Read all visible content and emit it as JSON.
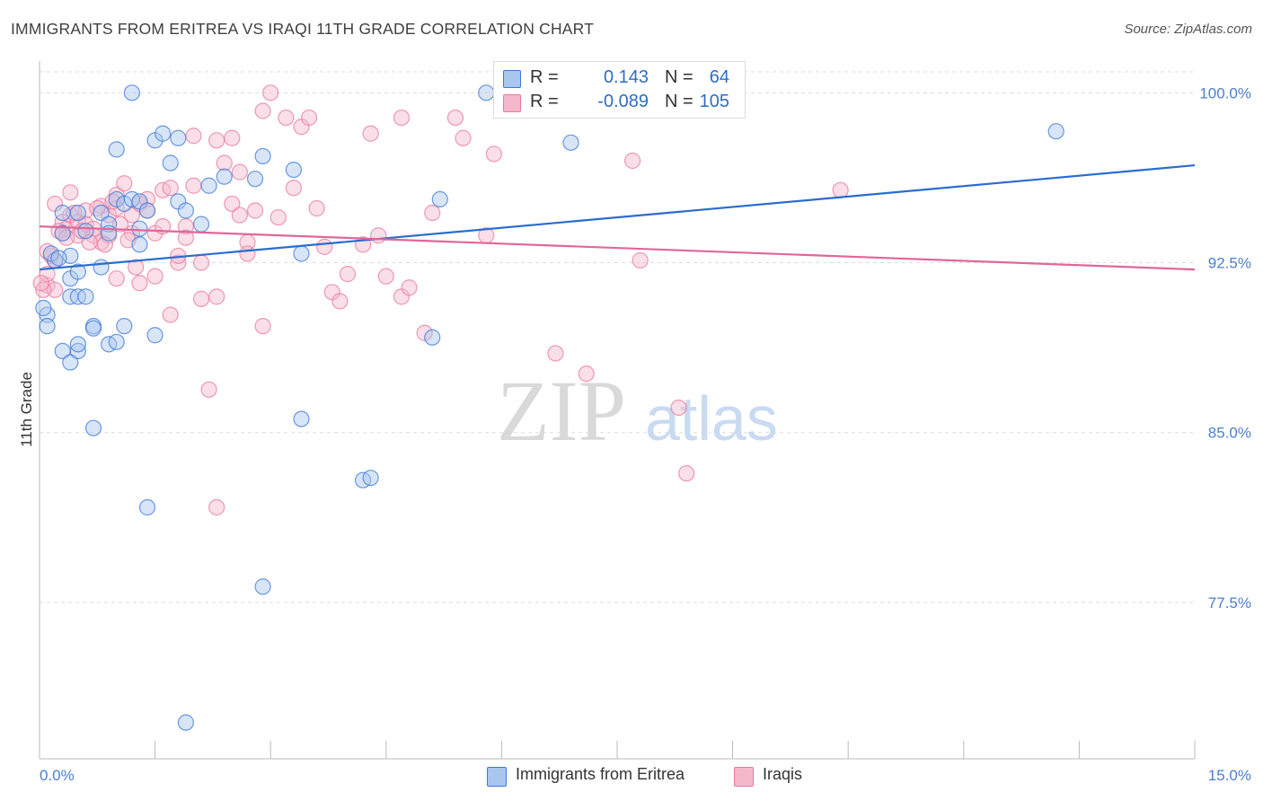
{
  "title": "IMMIGRANTS FROM ERITREA VS IRAQI 11TH GRADE CORRELATION CHART",
  "source": "Source: ZipAtlas.com",
  "watermark": {
    "zip": "ZIP",
    "atlas": "atlas"
  },
  "colors": {
    "blue_fill": "#a9c6ee",
    "blue_stroke": "#3c78d8",
    "blue_line": "#2a6ccf",
    "pink_fill": "#f5b8cb",
    "pink_stroke": "#e8799e",
    "pink_line": "#e0679a",
    "tick_label": "#4a7fd0",
    "grid": "#dddddd"
  },
  "legend": {
    "rows": [
      {
        "r_label": "R =",
        "r_value": "0.143",
        "n_label": "N =",
        "n_value": "64"
      },
      {
        "r_label": "R =",
        "r_value": "-0.089",
        "n_label": "N =",
        "n_value": "105"
      }
    ]
  },
  "bottom_legend": [
    "Immigrants from Eritrea",
    "Iraqis"
  ],
  "chart_data": {
    "type": "scatter",
    "title": "IMMIGRANTS FROM ERITREA VS IRAQI 11TH GRADE CORRELATION CHART",
    "xlabel": "",
    "ylabel": "11th Grade",
    "xlim": [
      0,
      15
    ],
    "ylim": [
      70.6,
      101.4
    ],
    "x_tick_labels": [
      {
        "value": 0,
        "label": "0.0%"
      },
      {
        "value": 15,
        "label": "15.0%"
      }
    ],
    "y_tick_labels": [
      {
        "value": 100,
        "label": "100.0%"
      },
      {
        "value": 92.5,
        "label": "92.5%"
      },
      {
        "value": 85,
        "label": "85.0%"
      },
      {
        "value": 77.5,
        "label": "77.5%"
      }
    ],
    "grid": true,
    "series": [
      {
        "name": "Immigrants from Eritrea",
        "trend": {
          "x": [
            0,
            15
          ],
          "y": [
            92.2,
            96.8
          ]
        },
        "points": [
          [
            0.1,
            90.2
          ],
          [
            0.1,
            89.7
          ],
          [
            0.2,
            92.6
          ],
          [
            0.3,
            94.7
          ],
          [
            0.3,
            93.8
          ],
          [
            0.3,
            88.6
          ],
          [
            0.4,
            92.8
          ],
          [
            0.4,
            91.8
          ],
          [
            0.4,
            88.1
          ],
          [
            0.4,
            91.0
          ],
          [
            0.5,
            94.7
          ],
          [
            0.5,
            92.1
          ],
          [
            0.5,
            91.0
          ],
          [
            0.5,
            88.6
          ],
          [
            0.5,
            88.9
          ],
          [
            0.6,
            91.0
          ],
          [
            0.6,
            93.9
          ],
          [
            0.7,
            89.7
          ],
          [
            0.7,
            89.6
          ],
          [
            0.7,
            85.2
          ],
          [
            0.8,
            94.7
          ],
          [
            0.8,
            92.3
          ],
          [
            0.9,
            94.2
          ],
          [
            0.9,
            88.9
          ],
          [
            0.9,
            93.8
          ],
          [
            1.0,
            89.0
          ],
          [
            1.0,
            97.5
          ],
          [
            1.0,
            95.3
          ],
          [
            1.1,
            95.1
          ],
          [
            1.1,
            89.7
          ],
          [
            1.2,
            95.3
          ],
          [
            1.2,
            100.0
          ],
          [
            1.3,
            94.0
          ],
          [
            1.3,
            93.3
          ],
          [
            1.3,
            95.2
          ],
          [
            1.4,
            94.8
          ],
          [
            1.4,
            81.7
          ],
          [
            1.5,
            89.3
          ],
          [
            1.5,
            97.9
          ],
          [
            1.6,
            98.2
          ],
          [
            1.7,
            96.9
          ],
          [
            1.8,
            95.2
          ],
          [
            1.8,
            98.0
          ],
          [
            1.9,
            94.8
          ],
          [
            1.9,
            72.2
          ],
          [
            2.1,
            94.2
          ],
          [
            2.2,
            95.9
          ],
          [
            2.4,
            96.3
          ],
          [
            2.8,
            96.2
          ],
          [
            2.9,
            97.2
          ],
          [
            2.9,
            78.2
          ],
          [
            3.3,
            96.6
          ],
          [
            3.4,
            85.6
          ],
          [
            3.4,
            92.9
          ],
          [
            4.2,
            82.9
          ],
          [
            4.3,
            83.0
          ],
          [
            5.1,
            89.2
          ],
          [
            5.2,
            95.3
          ],
          [
            5.8,
            100.0
          ],
          [
            6.9,
            97.8
          ],
          [
            13.2,
            98.3
          ],
          [
            0.05,
            90.5
          ],
          [
            0.15,
            92.9
          ],
          [
            0.25,
            92.7
          ]
        ]
      },
      {
        "name": "Iraqis",
        "trend": {
          "x": [
            0,
            15
          ],
          "y": [
            94.1,
            92.2
          ]
        },
        "points": [
          [
            0.1,
            91.5
          ],
          [
            0.1,
            92.0
          ],
          [
            0.15,
            92.8
          ],
          [
            0.2,
            92.6
          ],
          [
            0.2,
            91.3
          ],
          [
            0.3,
            94.3
          ],
          [
            0.3,
            93.8
          ],
          [
            0.35,
            94.0
          ],
          [
            0.4,
            95.6
          ],
          [
            0.4,
            94.6
          ],
          [
            0.5,
            93.7
          ],
          [
            0.5,
            94.3
          ],
          [
            0.6,
            94.8
          ],
          [
            0.6,
            94.2
          ],
          [
            0.7,
            94.0
          ],
          [
            0.7,
            93.7
          ],
          [
            0.8,
            95.0
          ],
          [
            0.8,
            93.4
          ],
          [
            0.9,
            93.7
          ],
          [
            0.9,
            94.6
          ],
          [
            1.0,
            91.8
          ],
          [
            1.0,
            94.9
          ],
          [
            1.0,
            95.5
          ],
          [
            1.1,
            96.0
          ],
          [
            1.2,
            94.6
          ],
          [
            1.2,
            93.8
          ],
          [
            1.3,
            95.1
          ],
          [
            1.3,
            91.6
          ],
          [
            1.4,
            95.3
          ],
          [
            1.4,
            94.8
          ],
          [
            1.5,
            93.8
          ],
          [
            1.5,
            91.9
          ],
          [
            1.6,
            95.7
          ],
          [
            1.6,
            94.1
          ],
          [
            1.7,
            95.8
          ],
          [
            1.7,
            90.2
          ],
          [
            1.8,
            92.5
          ],
          [
            1.8,
            92.8
          ],
          [
            1.9,
            94.1
          ],
          [
            1.9,
            93.6
          ],
          [
            2.0,
            95.9
          ],
          [
            2.0,
            98.1
          ],
          [
            2.1,
            92.5
          ],
          [
            2.1,
            90.9
          ],
          [
            2.2,
            86.9
          ],
          [
            2.3,
            91.0
          ],
          [
            2.3,
            97.9
          ],
          [
            2.4,
            96.9
          ],
          [
            2.5,
            95.1
          ],
          [
            2.5,
            98.0
          ],
          [
            2.6,
            96.5
          ],
          [
            2.6,
            94.6
          ],
          [
            2.7,
            93.4
          ],
          [
            2.7,
            92.9
          ],
          [
            2.8,
            94.8
          ],
          [
            2.9,
            89.7
          ],
          [
            2.9,
            99.2
          ],
          [
            3.0,
            100.0
          ],
          [
            3.1,
            94.5
          ],
          [
            3.2,
            98.9
          ],
          [
            3.3,
            95.8
          ],
          [
            3.4,
            98.5
          ],
          [
            3.5,
            98.9
          ],
          [
            3.6,
            94.9
          ],
          [
            3.7,
            93.2
          ],
          [
            3.8,
            91.2
          ],
          [
            3.9,
            90.8
          ],
          [
            4.0,
            92.0
          ],
          [
            4.2,
            93.3
          ],
          [
            4.3,
            98.2
          ],
          [
            4.4,
            93.7
          ],
          [
            4.5,
            91.9
          ],
          [
            4.7,
            91.0
          ],
          [
            4.8,
            91.4
          ],
          [
            4.7,
            98.9
          ],
          [
            5.0,
            89.4
          ],
          [
            5.1,
            94.7
          ],
          [
            5.4,
            98.9
          ],
          [
            5.5,
            98.0
          ],
          [
            5.8,
            93.7
          ],
          [
            5.9,
            97.3
          ],
          [
            6.5,
            100.0
          ],
          [
            6.7,
            88.5
          ],
          [
            7.1,
            87.6
          ],
          [
            7.7,
            97.0
          ],
          [
            7.8,
            92.6
          ],
          [
            8.3,
            86.1
          ],
          [
            8.4,
            83.2
          ],
          [
            10.4,
            95.7
          ],
          [
            0.05,
            91.3
          ],
          [
            0.1,
            93.0
          ],
          [
            0.2,
            95.1
          ],
          [
            0.25,
            93.9
          ],
          [
            0.35,
            93.6
          ],
          [
            0.45,
            94.7
          ],
          [
            0.55,
            93.9
          ],
          [
            0.65,
            93.4
          ],
          [
            0.75,
            94.9
          ],
          [
            0.85,
            93.3
          ],
          [
            0.95,
            95.2
          ],
          [
            1.05,
            94.2
          ],
          [
            1.15,
            93.5
          ],
          [
            1.25,
            92.3
          ],
          [
            2.3,
            81.7
          ],
          [
            0.02,
            91.6
          ]
        ]
      }
    ]
  }
}
